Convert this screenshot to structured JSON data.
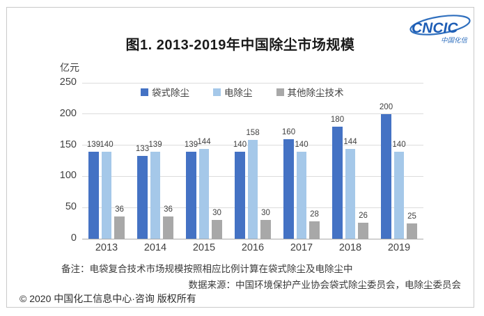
{
  "page": {
    "note": "备注：电袋复合技术市场规模按照相应比例计算在袋式除尘及电除尘中",
    "source": "数据来源：中国环境保护产业协会袋式除尘委员会，电除尘委员会",
    "copyright": "© 2020 中国化工信息中心·咨询 版权所有"
  },
  "logo": {
    "text": "CNCIC",
    "subtext": "中国化信",
    "color": "#1d5db5",
    "orbit_color": "#2f6fbe"
  },
  "chart_data": {
    "type": "bar",
    "title": "图1. 2013-2019年中国除尘市场规模",
    "unit": "亿元",
    "categories": [
      "2013",
      "2014",
      "2015",
      "2016",
      "2017",
      "2018",
      "2019"
    ],
    "series": [
      {
        "name": "袋式除尘",
        "color": "#4472c4",
        "values": [
          139,
          133,
          139,
          140,
          160,
          180,
          200
        ]
      },
      {
        "name": "电除尘",
        "color": "#a5c8e9",
        "values": [
          140,
          139,
          144,
          158,
          140,
          144,
          140
        ]
      },
      {
        "name": "其他除尘技术",
        "color": "#a8a8a8",
        "values": [
          36,
          36,
          30,
          30,
          28,
          26,
          25
        ]
      }
    ],
    "ylim": [
      0,
      250
    ],
    "yticks": [
      0,
      50,
      100,
      150,
      200,
      250
    ],
    "grid": true,
    "legend_position": "top",
    "data_labels": true
  },
  "colors": {
    "gridline": "#dcdcdc",
    "axis_line": "#a9a9a9",
    "tick_text": "#404040",
    "title_text": "#1a1a1a",
    "frame_border": "#c9c9c9"
  }
}
